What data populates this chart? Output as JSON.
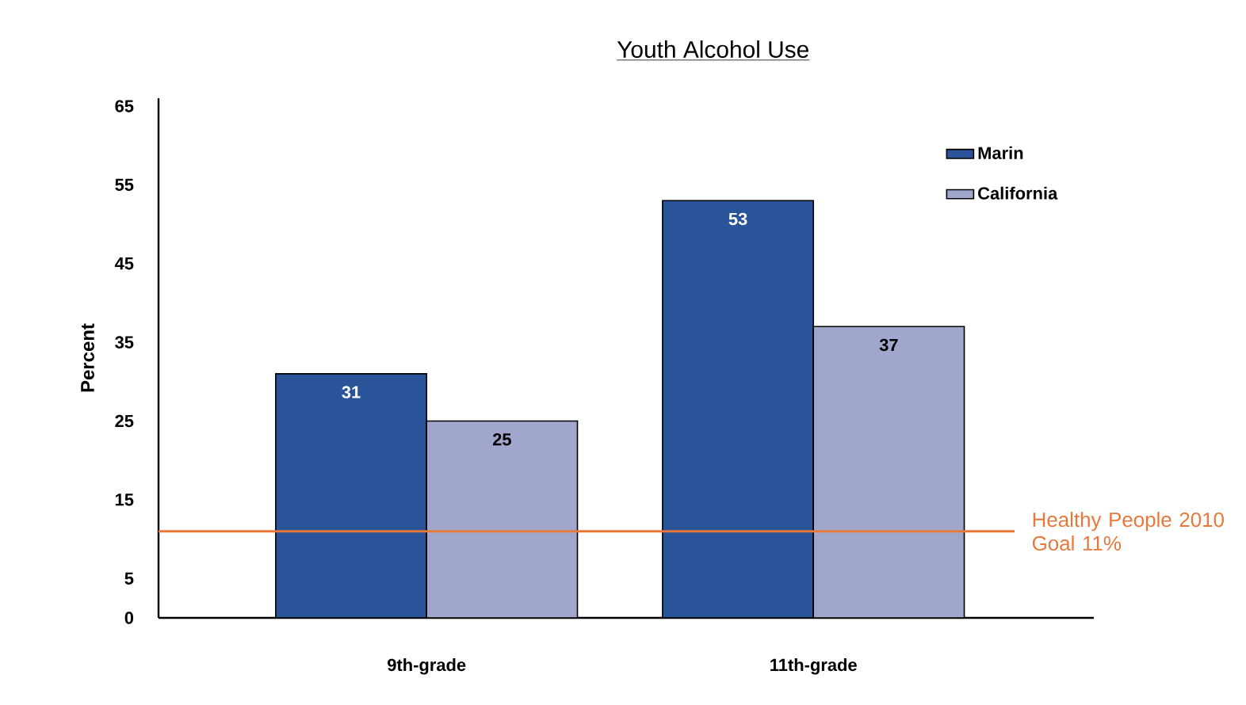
{
  "chart_data": {
    "type": "bar",
    "title": "Youth Alcohol Use",
    "ylabel": "Percent",
    "categories": [
      "9th-grade",
      "11th-grade"
    ],
    "series": [
      {
        "name": "Marin",
        "color": "#2a5499",
        "values": [
          31,
          53
        ]
      },
      {
        "name": "California",
        "color": "#a0a6cc",
        "values": [
          25,
          37
        ]
      }
    ],
    "ylim": [
      0,
      66
    ],
    "yticks": [
      0,
      5,
      15,
      25,
      35,
      45,
      55,
      65
    ],
    "data_labels": true,
    "legend": "top right",
    "grid": false,
    "ref_lines": [
      {
        "axis": "y",
        "value": 11,
        "label": "Healthy People 2010 Goal 11%",
        "color": "#e8773a"
      }
    ]
  }
}
